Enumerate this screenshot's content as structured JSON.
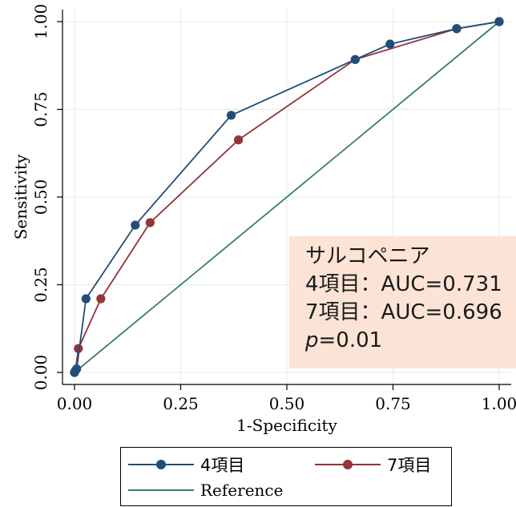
{
  "chart_data": {
    "type": "line",
    "title": "",
    "xlabel": "1-Specificity",
    "ylabel": "Sensitivity",
    "xlim": [
      0,
      1
    ],
    "ylim": [
      0,
      1
    ],
    "x_ticks": [
      0,
      0.25,
      0.5,
      0.75,
      1
    ],
    "y_ticks": [
      0,
      0.25,
      0.5,
      0.75,
      1
    ],
    "x_tick_labels": [
      "0.00",
      "0.25",
      "0.50",
      "0.75",
      "1.00"
    ],
    "y_tick_labels": [
      "0.00",
      "0.25",
      "0.50",
      "0.75",
      "1.00"
    ],
    "grid": true,
    "legend_position": "bottom",
    "series": [
      {
        "name": "4項目",
        "color": "#1f4e79",
        "markers": true,
        "points": [
          [
            0,
            0
          ],
          [
            0.005,
            0.01
          ],
          [
            0.027,
            0.21
          ],
          [
            0.143,
            0.42
          ],
          [
            0.369,
            0.733
          ],
          [
            0.661,
            0.892
          ],
          [
            0.743,
            0.936
          ],
          [
            0.9,
            0.98
          ],
          [
            1,
            1
          ]
        ]
      },
      {
        "name": "7項目",
        "color": "#93353a",
        "markers": true,
        "points": [
          [
            0,
            0
          ],
          [
            0.002,
            0.005
          ],
          [
            0.009,
            0.068
          ],
          [
            0.062,
            0.21
          ],
          [
            0.178,
            0.427
          ],
          [
            0.386,
            0.663
          ],
          [
            0.661,
            0.892
          ],
          [
            0.9,
            0.98
          ],
          [
            1,
            1
          ]
        ]
      },
      {
        "name": "Reference",
        "color": "#3b7c6e",
        "markers": false,
        "points": [
          [
            0,
            0
          ],
          [
            1,
            1
          ]
        ]
      }
    ],
    "annotation": {
      "line1": "サルコペニア",
      "line2": "4項目：AUC=0.731",
      "line3": "7項目：AUC=0.696",
      "line4_prefix": "p",
      "line4_rest": "=0.01",
      "background": "#fbe3d5"
    }
  }
}
